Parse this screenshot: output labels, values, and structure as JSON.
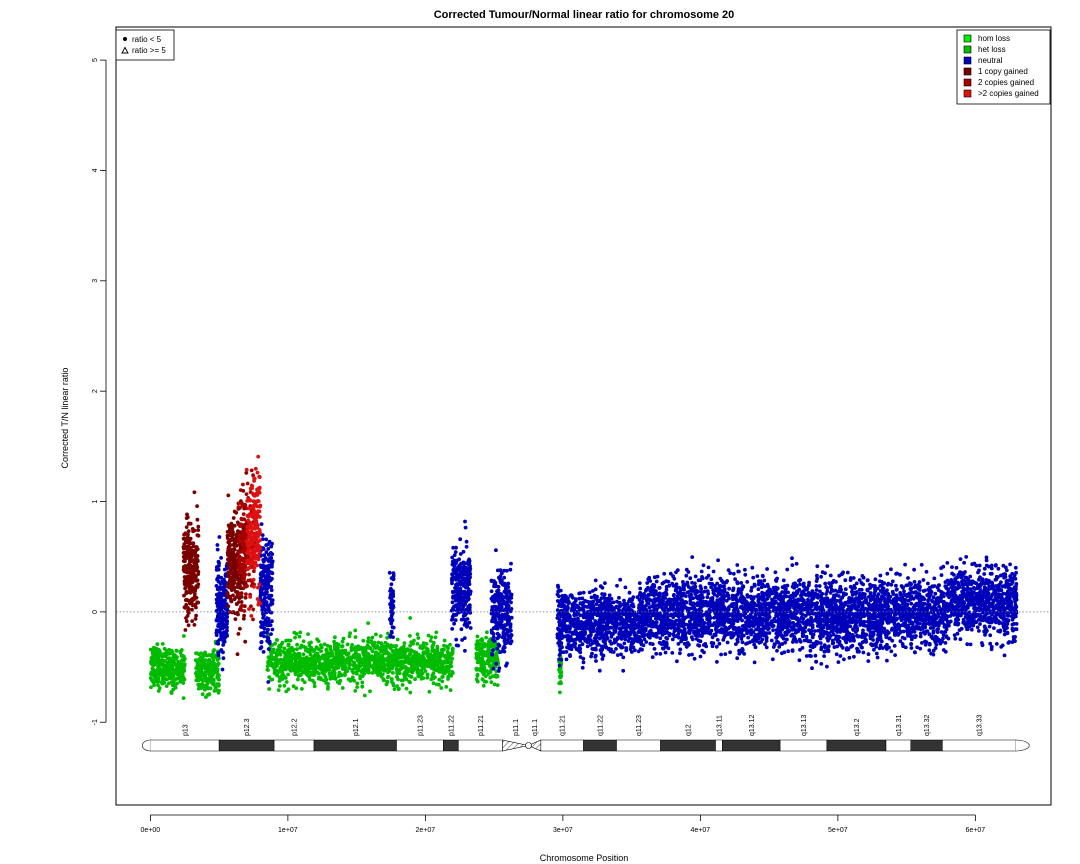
{
  "chart_data": {
    "type": "scatter",
    "title": "Corrected Tumour/Normal linear ratio for chromosome  20",
    "xlabel": "Chromosome Position",
    "ylabel": "Corrected T/N linear ratio",
    "xlim": [
      -2500000,
      65500000
    ],
    "ylim": [
      -1.75,
      5.3
    ],
    "x_ticks": [
      {
        "value": 0,
        "label": "0e+00"
      },
      {
        "value": 10000000,
        "label": "1e+07"
      },
      {
        "value": 20000000,
        "label": "2e+07"
      },
      {
        "value": 30000000,
        "label": "3e+07"
      },
      {
        "value": 40000000,
        "label": "4e+07"
      },
      {
        "value": 50000000,
        "label": "5e+07"
      },
      {
        "value": 60000000,
        "label": "6e+07"
      }
    ],
    "y_ticks": [
      {
        "value": -1,
        "label": "-1"
      },
      {
        "value": 0,
        "label": "0"
      },
      {
        "value": 1,
        "label": "1"
      },
      {
        "value": 2,
        "label": "2"
      },
      {
        "value": 3,
        "label": "3"
      },
      {
        "value": 4,
        "label": "4"
      },
      {
        "value": 5,
        "label": "5"
      }
    ],
    "reference_line_y": 0,
    "shape_legend": {
      "placement": "top-left",
      "entries": [
        {
          "label": "ratio < 5",
          "marker": "circle"
        },
        {
          "label": "ratio >= 5",
          "marker": "triangle"
        }
      ]
    },
    "legend": {
      "placement": "top-right",
      "entries": [
        {
          "label": "hom loss",
          "color": "#00ee00"
        },
        {
          "label": "het loss",
          "color": "#00bb00"
        },
        {
          "label": "neutral",
          "color": "#0000bb"
        },
        {
          "label": "1 copy gained",
          "color": "#7a0000"
        },
        {
          "label": "2 copies gained",
          "color": "#a80000"
        },
        {
          "label": ">2 copies gained",
          "color": "#dd1111"
        }
      ]
    },
    "series": [
      {
        "name": "het loss",
        "color": "#00bb00",
        "segments": [
          {
            "start": 0,
            "end": 2500000,
            "mean": -0.5,
            "spread": 0.1,
            "n": 300
          },
          {
            "start": 3300000,
            "end": 5000000,
            "mean": -0.53,
            "spread": 0.1,
            "n": 220
          },
          {
            "start": 8500000,
            "end": 22000000,
            "mean": -0.45,
            "spread": 0.1,
            "n": 1300
          },
          {
            "start": 23700000,
            "end": 25300000,
            "mean": -0.42,
            "spread": 0.11,
            "n": 200
          },
          {
            "start": 29700000,
            "end": 29900000,
            "mean": -0.45,
            "spread": 0.12,
            "n": 40
          }
        ]
      },
      {
        "name": "neutral",
        "color": "#0000bb",
        "segments": [
          {
            "start": 4800000,
            "end": 5600000,
            "mean": 0.05,
            "spread": 0.22,
            "n": 200
          },
          {
            "start": 8000000,
            "end": 8900000,
            "mean": 0.2,
            "spread": 0.25,
            "n": 220
          },
          {
            "start": 17400000,
            "end": 17700000,
            "mean": 0.05,
            "spread": 0.15,
            "n": 60
          },
          {
            "start": 21900000,
            "end": 23300000,
            "mean": 0.2,
            "spread": 0.2,
            "n": 260
          },
          {
            "start": 24800000,
            "end": 26300000,
            "mean": -0.02,
            "spread": 0.2,
            "n": 260
          },
          {
            "start": 29600000,
            "end": 29800000,
            "mean": -0.1,
            "spread": 0.2,
            "n": 40
          },
          {
            "start": 29800000,
            "end": 36000000,
            "mean": -0.1,
            "spread": 0.14,
            "n": 900
          },
          {
            "start": 36000000,
            "end": 58000000,
            "mean": -0.02,
            "spread": 0.16,
            "n": 3200
          },
          {
            "start": 58000000,
            "end": 63000000,
            "mean": 0.08,
            "spread": 0.16,
            "n": 750
          }
        ]
      },
      {
        "name": "1 copy gained",
        "color": "#7a0000",
        "segments": [
          {
            "start": 2400000,
            "end": 3500000,
            "mean": 0.4,
            "spread": 0.22,
            "n": 260
          },
          {
            "start": 5600000,
            "end": 7000000,
            "mean": 0.45,
            "spread": 0.25,
            "n": 300
          }
        ]
      },
      {
        "name": "2 copies gained",
        "color": "#a80000",
        "segments": [
          {
            "start": 6400000,
            "end": 7600000,
            "mean": 0.6,
            "spread": 0.25,
            "n": 160
          }
        ]
      },
      {
        "name": ">2 copies gained",
        "color": "#dd1111",
        "segments": [
          {
            "start": 7000000,
            "end": 8000000,
            "mean": 0.72,
            "spread": 0.28,
            "n": 180
          }
        ]
      }
    ],
    "ideogram": {
      "bands": [
        {
          "name": "p13",
          "start": 0,
          "end": 5000000,
          "stain": "white"
        },
        {
          "name": "p12.3",
          "start": 5000000,
          "end": 9000000,
          "stain": "dark"
        },
        {
          "name": "p12.2",
          "start": 9000000,
          "end": 11900000,
          "stain": "white"
        },
        {
          "name": "p12.1",
          "start": 11900000,
          "end": 17900000,
          "stain": "dark"
        },
        {
          "name": "p11.23",
          "start": 17900000,
          "end": 21300000,
          "stain": "white"
        },
        {
          "name": "p11.22",
          "start": 21300000,
          "end": 22400000,
          "stain": "dark"
        },
        {
          "name": "p11.21",
          "start": 22400000,
          "end": 25600000,
          "stain": "white"
        },
        {
          "name": "p11.1",
          "start": 25600000,
          "end": 27500000,
          "stain": "hatched"
        },
        {
          "name": "q11.1",
          "start": 27500000,
          "end": 28400000,
          "stain": "hatched"
        },
        {
          "name": "q11.21",
          "start": 28400000,
          "end": 31500000,
          "stain": "white"
        },
        {
          "name": "q11.22",
          "start": 31500000,
          "end": 33900000,
          "stain": "dark"
        },
        {
          "name": "q11.23",
          "start": 33900000,
          "end": 37100000,
          "stain": "white"
        },
        {
          "name": "q12",
          "start": 37100000,
          "end": 41100000,
          "stain": "dark"
        },
        {
          "name": "q13.11",
          "start": 41100000,
          "end": 41600000,
          "stain": "white"
        },
        {
          "name": "q13.12",
          "start": 41600000,
          "end": 45800000,
          "stain": "dark"
        },
        {
          "name": "q13.13",
          "start": 45800000,
          "end": 49200000,
          "stain": "white"
        },
        {
          "name": "q13.2",
          "start": 49200000,
          "end": 53500000,
          "stain": "dark"
        },
        {
          "name": "q13.31",
          "start": 53500000,
          "end": 55300000,
          "stain": "white"
        },
        {
          "name": "q13.32",
          "start": 55300000,
          "end": 57600000,
          "stain": "dark"
        },
        {
          "name": "q13.33",
          "start": 57600000,
          "end": 62900000,
          "stain": "white"
        }
      ]
    }
  }
}
